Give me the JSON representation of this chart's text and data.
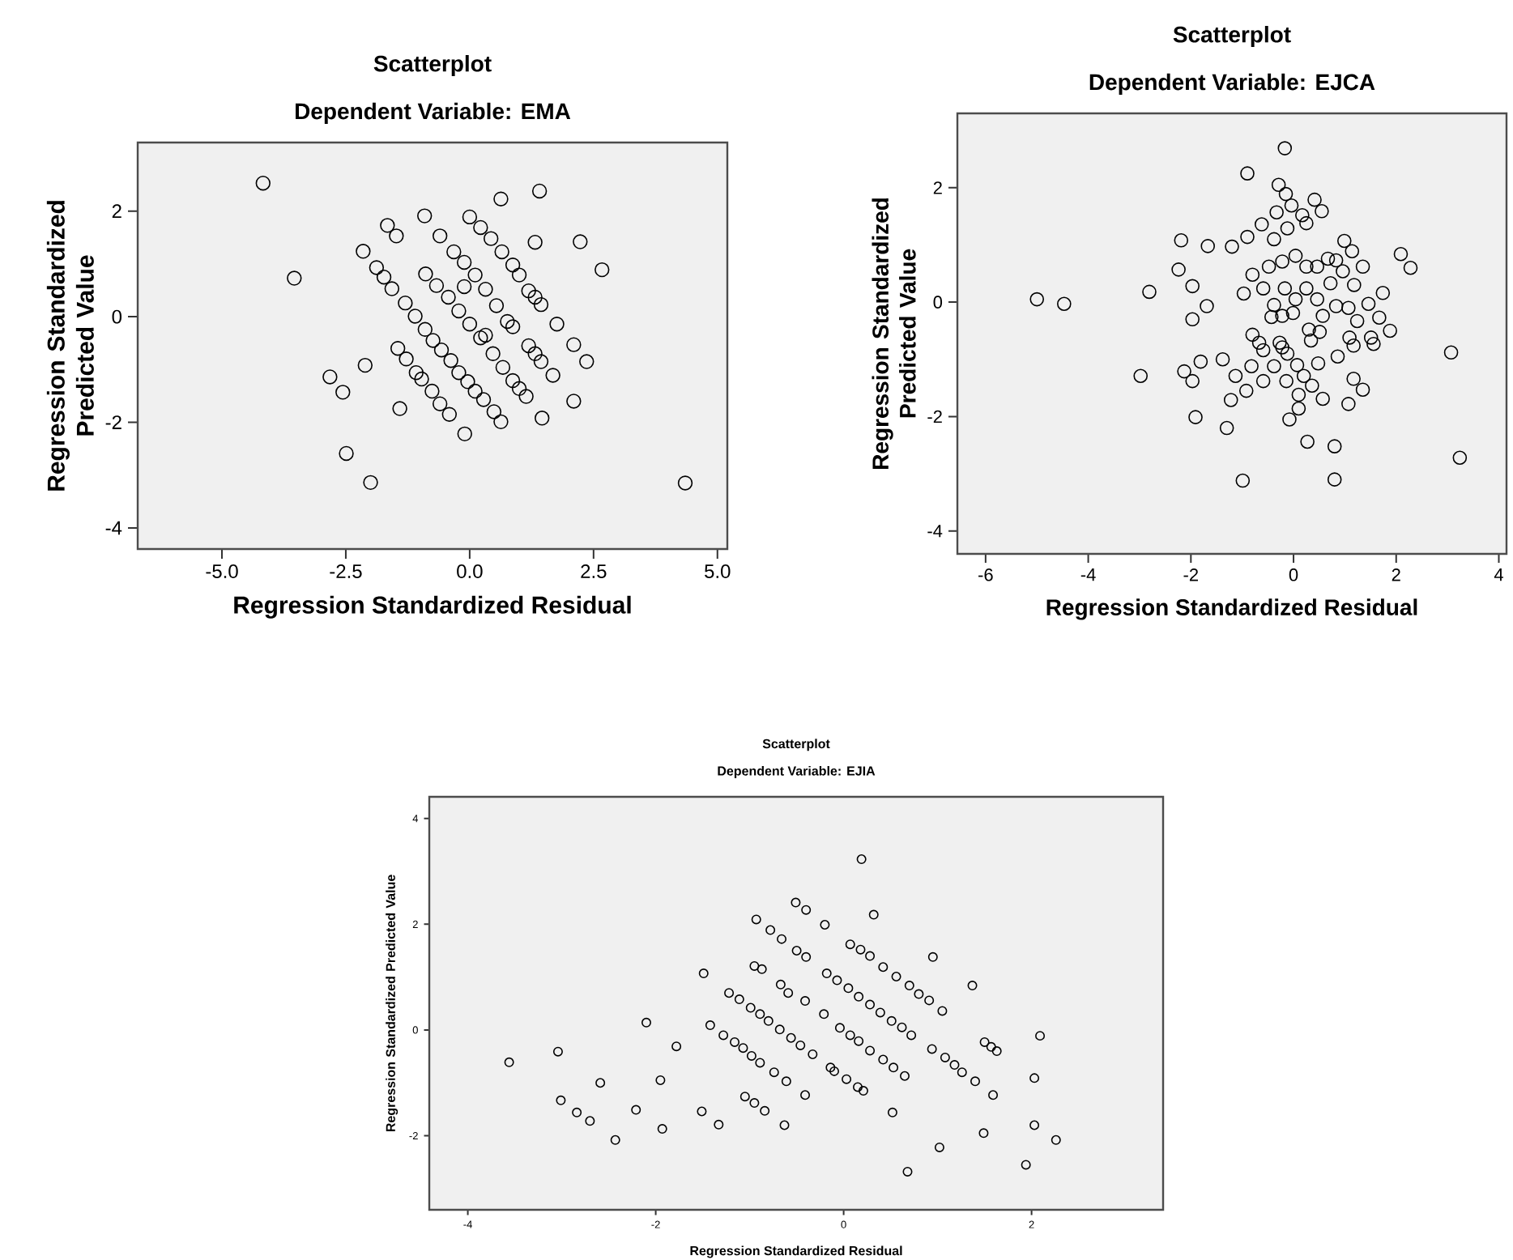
{
  "chart_data": [
    {
      "type": "scatter",
      "title": "Scatterplot",
      "subtitle": "Dependent Variable: EMA",
      "xlabel": "Regression Standardized Residual",
      "ylabel": "Regression Standardized Predicted Value",
      "marker": "circle",
      "xlim": [
        -6.7,
        5.2
      ],
      "ylim": [
        -4.4,
        3.3
      ],
      "xticks": [
        {
          "value": -5,
          "label": "-5.0"
        },
        {
          "value": -2.5,
          "label": "-2.5"
        },
        {
          "value": 0,
          "label": "0.0"
        },
        {
          "value": 2.5,
          "label": "2.5"
        },
        {
          "value": 5,
          "label": "5.0"
        }
      ],
      "yticks": [
        -4,
        -2,
        0,
        2
      ],
      "series": [
        {
          "color": "#000000",
          "x": [
            -4.17,
            -3.54,
            -1.66,
            -1.48,
            -2.15,
            -1.88,
            -1.73,
            -1.57,
            -1.3,
            -1.1,
            -0.9,
            -0.74,
            -0.57,
            -0.38,
            -0.22,
            -0.04,
            0.11,
            0.28,
            0.49,
            0.63,
            -0.91,
            -0.6,
            -0.89,
            -0.67,
            -0.43,
            -0.22,
            0.0,
            0.22,
            0.47,
            0.67,
            0.87,
            1.0,
            1.14,
            0.0,
            0.22,
            0.43,
            0.65,
            0.87,
            1.0,
            -0.32,
            -0.11,
            0.11,
            0.32,
            0.54,
            0.87,
            1.19,
            1.32,
            1.44,
            0.63,
            1.41,
            1.32,
            2.23,
            2.67,
            1.76,
            2.1,
            2.36,
            2.1,
            1.46,
            1.68,
            1.19,
            1.32,
            1.44,
            -1.45,
            -1.28,
            -1.08,
            -0.97,
            -0.76,
            -0.6,
            -0.41,
            -1.41,
            -2.11,
            -2.82,
            -2.56,
            -2.49,
            -2.0,
            -0.1,
            4.35,
            0.32,
            0.76,
            -0.11
          ],
          "values": [
            2.53,
            0.73,
            1.73,
            1.53,
            1.24,
            0.93,
            0.75,
            0.53,
            0.26,
            0.01,
            -0.24,
            -0.45,
            -0.63,
            -0.83,
            -1.06,
            -1.23,
            -1.41,
            -1.57,
            -1.8,
            -1.99,
            1.91,
            1.53,
            0.81,
            0.59,
            0.37,
            0.11,
            -0.14,
            -0.4,
            -0.7,
            -0.96,
            -1.21,
            -1.36,
            -1.51,
            1.89,
            1.69,
            1.48,
            1.23,
            0.98,
            0.79,
            1.23,
            1.03,
            0.79,
            0.52,
            0.21,
            -0.19,
            0.49,
            0.37,
            0.23,
            2.23,
            2.38,
            1.41,
            1.42,
            0.89,
            -0.14,
            -0.53,
            -0.85,
            -1.6,
            -1.92,
            -1.11,
            -0.55,
            -0.7,
            -0.85,
            -0.6,
            -0.8,
            -1.06,
            -1.18,
            -1.41,
            -1.65,
            -1.85,
            -1.74,
            -0.92,
            -1.14,
            -1.43,
            -2.59,
            -3.14,
            -2.22,
            -3.15,
            -0.35,
            -0.09,
            0.57
          ]
        }
      ]
    },
    {
      "type": "scatter",
      "title": "Scatterplot",
      "subtitle": "Dependent Variable: EJCA",
      "xlabel": "Regression Standardized Residual",
      "ylabel": "Regression Standardized Predicted Value",
      "marker": "circle",
      "xlim": [
        -6.55,
        4.15
      ],
      "ylim": [
        -4.4,
        3.3
      ],
      "xticks": [
        -6,
        -4,
        -2,
        0,
        2,
        4
      ],
      "yticks": [
        -4,
        -2,
        0,
        2
      ],
      "series": [
        {
          "color": "#000000",
          "x": [
            -5.0,
            -4.47,
            -0.17,
            -0.9,
            -0.29,
            -0.15,
            0.41,
            0.55,
            -0.33,
            -0.04,
            0.17,
            0.25,
            -0.62,
            -0.9,
            -0.12,
            -2.19,
            -1.67,
            -1.2,
            -0.38,
            0.99,
            1.14,
            2.09,
            2.28,
            -2.24,
            -1.97,
            -2.81,
            -0.97,
            -1.69,
            -1.97,
            -0.8,
            -0.48,
            -0.22,
            0.04,
            0.25,
            0.46,
            0.67,
            0.83,
            1.35,
            0.72,
            0.96,
            1.18,
            1.74,
            1.46,
            1.07,
            1.24,
            1.67,
            1.88,
            1.51,
            1.56,
            1.09,
            1.17,
            0.86,
            0.83,
            0.57,
            0.46,
            0.25,
            0.04,
            -0.17,
            -0.38,
            -0.43,
            -0.22,
            -0.01,
            0.3,
            0.51,
            0.34,
            -0.59,
            -0.8,
            -0.67,
            -0.59,
            -0.27,
            -0.22,
            -0.12,
            0.07,
            0.48,
            0.2,
            0.36,
            0.57,
            -0.82,
            -0.38,
            -0.14,
            -0.59,
            0.1,
            0.1,
            -0.08,
            1.07,
            1.17,
            1.35,
            3.07,
            3.24,
            0.27,
            0.8,
            0.8,
            -0.99,
            -1.3,
            -1.91,
            -1.38,
            -1.13,
            -1.22,
            -0.92,
            -1.81,
            -2.13,
            -1.97,
            -2.98
          ],
          "values": [
            0.05,
            -0.03,
            2.69,
            2.25,
            2.05,
            1.89,
            1.79,
            1.59,
            1.57,
            1.69,
            1.52,
            1.38,
            1.36,
            1.14,
            1.29,
            1.08,
            0.98,
            0.97,
            1.1,
            1.07,
            0.89,
            0.84,
            0.6,
            0.57,
            0.28,
            0.18,
            0.15,
            -0.07,
            -0.3,
            0.48,
            0.62,
            0.71,
            0.81,
            0.62,
            0.62,
            0.76,
            0.73,
            0.62,
            0.33,
            0.54,
            0.3,
            0.16,
            -0.03,
            -0.1,
            -0.33,
            -0.27,
            -0.5,
            -0.62,
            -0.73,
            -0.62,
            -0.76,
            -0.95,
            -0.07,
            -0.24,
            0.05,
            0.24,
            0.05,
            0.24,
            -0.05,
            -0.26,
            -0.24,
            -0.19,
            -0.48,
            -0.52,
            -0.67,
            0.24,
            -0.57,
            -0.71,
            -0.84,
            -0.71,
            -0.79,
            -0.9,
            -1.1,
            -1.07,
            -1.29,
            -1.46,
            -1.69,
            -1.12,
            -1.12,
            -1.38,
            -1.38,
            -1.62,
            -1.86,
            -2.05,
            -1.78,
            -1.34,
            -1.53,
            -0.88,
            -2.72,
            -2.44,
            -2.52,
            -3.1,
            -3.12,
            -2.2,
            -2.01,
            -1.0,
            -1.29,
            -1.71,
            -1.55,
            -1.04,
            -1.21,
            -1.38,
            -1.29
          ]
        }
      ]
    },
    {
      "type": "scatter",
      "title": "Scatterplot",
      "subtitle": "Dependent Variable: EJIA",
      "xlabel": "Regression Standardized Residual",
      "ylabel": "Regression Standardized Predicted Value",
      "marker": "circle",
      "xlim": [
        -4.41,
        3.4
      ],
      "ylim": [
        -3.4,
        4.41
      ],
      "xticks": [
        -4,
        -2,
        0,
        2
      ],
      "yticks": [
        -2,
        0,
        2,
        4
      ],
      "series": [
        {
          "color": "#000000",
          "x": [
            0.19,
            0.32,
            -0.51,
            -0.4,
            -0.2,
            -0.93,
            -0.78,
            -0.66,
            -0.5,
            -0.4,
            0.07,
            0.18,
            0.28,
            0.42,
            0.56,
            0.7,
            0.8,
            0.91,
            1.05,
            0.95,
            1.37,
            -1.49,
            -0.95,
            -0.87,
            -0.67,
            -0.59,
            -0.41,
            -0.21,
            -0.18,
            -0.07,
            0.05,
            0.16,
            0.28,
            0.39,
            0.51,
            0.62,
            0.72,
            0.94,
            1.08,
            1.18,
            1.26,
            1.4,
            1.59,
            1.5,
            1.57,
            1.63,
            2.09,
            2.03,
            2.03,
            2.26,
            1.49,
            0.52,
            -1.22,
            -1.11,
            -0.99,
            -0.89,
            -0.8,
            -0.68,
            -0.56,
            -0.46,
            -0.33,
            -0.14,
            -0.1,
            0.03,
            0.15,
            0.21,
            -0.04,
            0.07,
            0.16,
            0.28,
            0.42,
            0.53,
            0.65,
            -1.42,
            -1.28,
            -1.16,
            -1.07,
            -0.98,
            -0.89,
            -0.74,
            -0.61,
            -0.41,
            -1.05,
            -0.95,
            -0.84,
            -0.63,
            -1.51,
            -1.33,
            -1.78,
            -2.1,
            -2.59,
            -1.95,
            -2.21,
            -1.93,
            -2.43,
            -2.7,
            -2.84,
            -3.01,
            -3.04,
            -3.56,
            1.02,
            0.68,
            1.94
          ],
          "values": [
            3.23,
            2.18,
            2.41,
            2.27,
            1.99,
            2.09,
            1.89,
            1.72,
            1.5,
            1.38,
            1.62,
            1.52,
            1.4,
            1.19,
            1.01,
            0.84,
            0.68,
            0.56,
            0.36,
            1.38,
            0.84,
            1.07,
            1.21,
            1.15,
            0.86,
            0.7,
            0.55,
            0.3,
            1.07,
            0.94,
            0.79,
            0.63,
            0.48,
            0.33,
            0.17,
            0.05,
            -0.1,
            -0.36,
            -0.52,
            -0.66,
            -0.8,
            -0.97,
            -1.23,
            -0.23,
            -0.32,
            -0.4,
            -0.11,
            -0.91,
            -1.8,
            -2.08,
            -1.95,
            -1.56,
            0.7,
            0.58,
            0.42,
            0.3,
            0.17,
            0.01,
            -0.15,
            -0.29,
            -0.46,
            -0.71,
            -0.78,
            -0.93,
            -1.08,
            -1.15,
            0.04,
            -0.1,
            -0.21,
            -0.39,
            -0.56,
            -0.71,
            -0.87,
            0.09,
            -0.1,
            -0.23,
            -0.34,
            -0.49,
            -0.62,
            -0.8,
            -0.97,
            -1.23,
            -1.26,
            -1.38,
            -1.53,
            -1.8,
            -1.54,
            -1.79,
            -0.31,
            0.14,
            -1.0,
            -0.95,
            -1.51,
            -1.87,
            -2.08,
            -1.72,
            -1.56,
            -1.33,
            -0.41,
            -0.61,
            -2.22,
            -2.68,
            -2.55
          ]
        }
      ]
    }
  ]
}
